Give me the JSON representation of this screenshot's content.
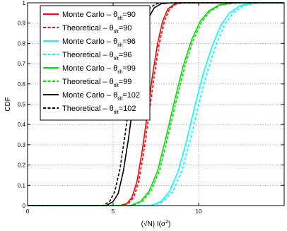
{
  "chart_data": {
    "type": "line",
    "xlabel": "(√N) I(σ",
    "xlabel_sup": "2",
    "xlabel_close": ")",
    "ylabel": "CDF",
    "xlim": [
      0,
      15
    ],
    "ylim": [
      0,
      1
    ],
    "xticks": [
      0,
      5,
      10
    ],
    "xtick_labels": [
      "0",
      "5",
      "10"
    ],
    "yticks": [
      0,
      0.1,
      0.2,
      0.3,
      0.4,
      0.5,
      0.6,
      0.7,
      0.8,
      0.9,
      1
    ],
    "ytick_labels": [
      "0",
      "0.1",
      "0.2",
      "0.3",
      "0.4",
      "0.5",
      "0.6",
      "0.7",
      "0.8",
      "0.9",
      "1"
    ],
    "grid": true,
    "legend_position": "top-left",
    "series": [
      {
        "name": "Monte Carlo – θ",
        "sub": "tilt",
        "suffix": "=90",
        "color": "#ff0000",
        "dash": false,
        "x": [
          0,
          5.4,
          5.8,
          6.1,
          6.4,
          6.7,
          7.0,
          7.3,
          7.6,
          7.9,
          8.2,
          8.6,
          9.0,
          15
        ],
        "y": [
          0,
          0,
          0.01,
          0.04,
          0.12,
          0.27,
          0.45,
          0.64,
          0.8,
          0.91,
          0.97,
          0.995,
          1.0,
          1.0
        ]
      },
      {
        "name": "Theoretical – θ",
        "sub": "tilt",
        "suffix": "=90",
        "color": "#ff0000",
        "dash": true,
        "x": [
          0,
          5.4,
          5.9,
          6.2,
          6.5,
          6.8,
          7.1,
          7.4,
          7.7,
          8.0,
          8.3,
          8.7,
          9.1,
          15
        ],
        "y": [
          0,
          0,
          0.01,
          0.04,
          0.12,
          0.27,
          0.45,
          0.64,
          0.8,
          0.91,
          0.97,
          0.995,
          1.0,
          1.0
        ]
      },
      {
        "name": "Monte Carlo – θ",
        "sub": "tilt",
        "suffix": "=96",
        "color": "#00ffff",
        "dash": false,
        "x": [
          0,
          7.2,
          7.8,
          8.3,
          8.8,
          9.3,
          9.8,
          10.3,
          10.8,
          11.3,
          11.8,
          12.4,
          13.2,
          15
        ],
        "y": [
          0,
          0,
          0.02,
          0.07,
          0.17,
          0.32,
          0.5,
          0.66,
          0.79,
          0.89,
          0.95,
          0.985,
          1.0,
          1.0
        ]
      },
      {
        "name": "Theoretical – θ",
        "sub": "tilt",
        "suffix": "=96",
        "color": "#00ffff",
        "dash": true,
        "x": [
          0,
          7.3,
          7.9,
          8.5,
          9.0,
          9.5,
          10.0,
          10.5,
          11.0,
          11.5,
          12.0,
          12.6,
          13.5,
          15
        ],
        "y": [
          0,
          0,
          0.02,
          0.07,
          0.17,
          0.32,
          0.5,
          0.66,
          0.79,
          0.89,
          0.95,
          0.985,
          1.0,
          1.0
        ]
      },
      {
        "name": "Monte Carlo – θ",
        "sub": "tilt",
        "suffix": "=99",
        "color": "#00dd00",
        "dash": false,
        "x": [
          0,
          6.0,
          6.6,
          7.1,
          7.6,
          8.1,
          8.6,
          9.1,
          9.6,
          10.1,
          10.6,
          11.2,
          12.2,
          15
        ],
        "y": [
          0,
          0,
          0.02,
          0.07,
          0.17,
          0.34,
          0.52,
          0.69,
          0.82,
          0.91,
          0.96,
          0.99,
          1.0,
          1.0
        ]
      },
      {
        "name": "Theoretical – θ",
        "sub": "tilt",
        "suffix": "=99",
        "color": "#00dd00",
        "dash": true,
        "x": [
          0,
          6.1,
          6.7,
          7.2,
          7.7,
          8.2,
          8.7,
          9.2,
          9.7,
          10.2,
          10.7,
          11.3,
          12.3,
          15
        ],
        "y": [
          0,
          0,
          0.02,
          0.07,
          0.17,
          0.34,
          0.52,
          0.69,
          0.82,
          0.91,
          0.96,
          0.99,
          1.0,
          1.0
        ]
      },
      {
        "name": "Monte Carlo – θ",
        "sub": "tilt",
        "suffix": "=102",
        "color": "#000000",
        "dash": false,
        "x": [
          0,
          4.6,
          5.0,
          5.3,
          5.6,
          5.9,
          6.2,
          6.5,
          6.8,
          7.1,
          7.4,
          7.8,
          8.4,
          15
        ],
        "y": [
          0,
          0,
          0.02,
          0.06,
          0.17,
          0.33,
          0.52,
          0.7,
          0.84,
          0.93,
          0.975,
          0.995,
          1.0,
          1.0
        ]
      },
      {
        "name": "Theoretical – θ",
        "sub": "tilt",
        "suffix": "=102",
        "color": "#000000",
        "dash": true,
        "x": [
          0,
          4.4,
          4.8,
          5.1,
          5.4,
          5.7,
          6.0,
          6.3,
          6.6,
          6.9,
          7.2,
          7.6,
          8.2,
          15
        ],
        "y": [
          0,
          0,
          0.02,
          0.07,
          0.18,
          0.35,
          0.54,
          0.72,
          0.85,
          0.94,
          0.98,
          0.997,
          1.0,
          1.0
        ]
      }
    ]
  }
}
